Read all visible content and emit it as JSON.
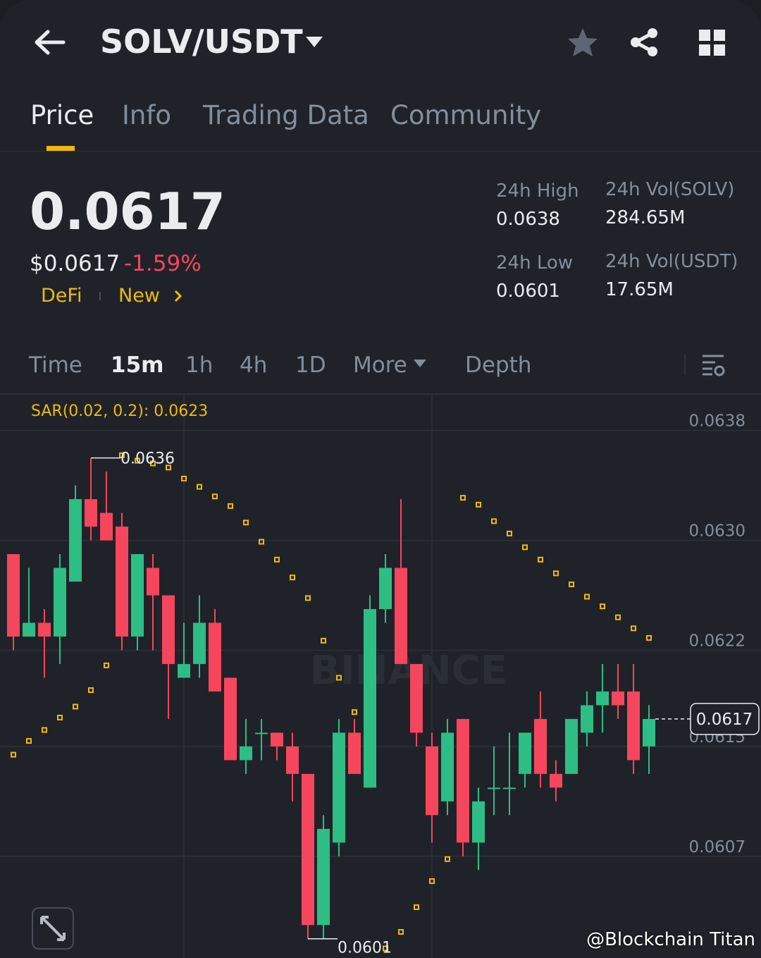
{
  "header": {
    "pair": "SOLV/USDT"
  },
  "tabs": [
    "Price",
    "Info",
    "Trading Data",
    "Community"
  ],
  "price": {
    "last": "0.0617",
    "usd": "$0.0617",
    "change": "-1.59%",
    "tags": [
      "DeFi",
      "New"
    ]
  },
  "stats": [
    {
      "label": "24h High",
      "value": "0.0638"
    },
    {
      "label": "24h Vol(SOLV)",
      "value": "284.65M"
    },
    {
      "label": "24h Low",
      "value": "0.0601"
    },
    {
      "label": "24h Vol(USDT)",
      "value": "17.65M"
    }
  ],
  "intervals": [
    "Time",
    "15m",
    "1h",
    "4h",
    "1D",
    "More",
    "Depth"
  ],
  "chart_data": {
    "type": "candlestick",
    "indicator_label": "SAR(0.02, 0.2): 0.0623",
    "watermark": "BINANCE",
    "open": [
      0.0629,
      0.0623,
      0.0624,
      0.0623,
      0.0627,
      0.0633,
      0.0632,
      0.0631,
      0.0623,
      0.0628,
      0.0626,
      0.062,
      0.0621,
      0.0624,
      0.062,
      0.0614,
      0.0616,
      0.0616,
      0.0615,
      0.0613,
      0.0602,
      0.0608,
      0.0616,
      0.0612,
      0.0625,
      0.0628,
      0.0621,
      0.0615,
      0.0611,
      0.0617,
      0.0608,
      0.0612,
      0.0612,
      0.0613,
      0.0617,
      0.0613,
      0.0613,
      0.0616,
      0.0618,
      0.0619,
      0.0619,
      0.0615
    ],
    "high": [
      0.0629,
      0.0628,
      0.0625,
      0.0629,
      0.0634,
      0.0636,
      0.0635,
      0.0632,
      0.0629,
      0.0629,
      0.0626,
      0.0624,
      0.0626,
      0.0625,
      0.062,
      0.0617,
      0.0617,
      0.0616,
      0.0616,
      0.0613,
      0.061,
      0.0617,
      0.0617,
      0.0626,
      0.0629,
      0.0633,
      0.0621,
      0.0616,
      0.0617,
      0.0617,
      0.0612,
      0.0615,
      0.0616,
      0.0616,
      0.0619,
      0.0614,
      0.0617,
      0.0619,
      0.0621,
      0.0621,
      0.0621,
      0.0618
    ],
    "low": [
      0.0622,
      0.0623,
      0.062,
      0.0621,
      0.0627,
      0.063,
      0.063,
      0.0622,
      0.0622,
      0.0622,
      0.0617,
      0.062,
      0.062,
      0.0619,
      0.0614,
      0.0613,
      0.0614,
      0.0614,
      0.0611,
      0.0601,
      0.0601,
      0.0607,
      0.0613,
      0.0612,
      0.0624,
      0.0621,
      0.0615,
      0.0608,
      0.061,
      0.0607,
      0.0606,
      0.061,
      0.061,
      0.0612,
      0.0612,
      0.0611,
      0.0613,
      0.0615,
      0.0616,
      0.0617,
      0.0613,
      0.0613
    ],
    "close": [
      0.0623,
      0.0624,
      0.0623,
      0.0628,
      0.0633,
      0.0631,
      0.063,
      0.0623,
      0.0629,
      0.0626,
      0.0621,
      0.0621,
      0.0624,
      0.0619,
      0.0614,
      0.0615,
      0.0616,
      0.0615,
      0.0613,
      0.0602,
      0.0609,
      0.0616,
      0.0613,
      0.0625,
      0.0628,
      0.0621,
      0.0616,
      0.061,
      0.0616,
      0.0608,
      0.0611,
      0.0612,
      0.0612,
      0.0616,
      0.0613,
      0.0612,
      0.0617,
      0.0618,
      0.0619,
      0.0618,
      0.0614,
      0.0617
    ],
    "sar": [
      0.06144,
      0.06154,
      0.06162,
      0.06171,
      0.06179,
      0.06191,
      0.06209,
      0.06362,
      0.06358,
      0.06356,
      0.06353,
      0.06345,
      0.06339,
      0.06332,
      0.06325,
      0.06313,
      0.06299,
      0.06286,
      0.06273,
      0.06258,
      0.06227,
      0.062,
      0.06175,
      null,
      0.06003,
      0.06015,
      0.06033,
      0.06052,
      0.06068,
      0.06331,
      0.06326,
      0.06314,
      0.06305,
      0.06295,
      0.06286,
      0.06276,
      0.06268,
      0.06259,
      0.06252,
      0.06244,
      0.06236,
      0.06229
    ],
    "ylim": [
      0.05996,
      0.06406
    ],
    "yticks": [
      0.0638,
      {
        "value": 0.063,
        "label": "0.0630"
      },
      0.0622,
      0.0615,
      0.0607
    ],
    "annotations": {
      "high": 0.0636,
      "low": 0.0601,
      "last": 0.0617
    },
    "colors": {
      "up": "#2ebd85",
      "down": "#f6465d",
      "sar": "#f0b90b"
    }
  },
  "footer": {
    "credit": "@Blockchain Titan"
  }
}
